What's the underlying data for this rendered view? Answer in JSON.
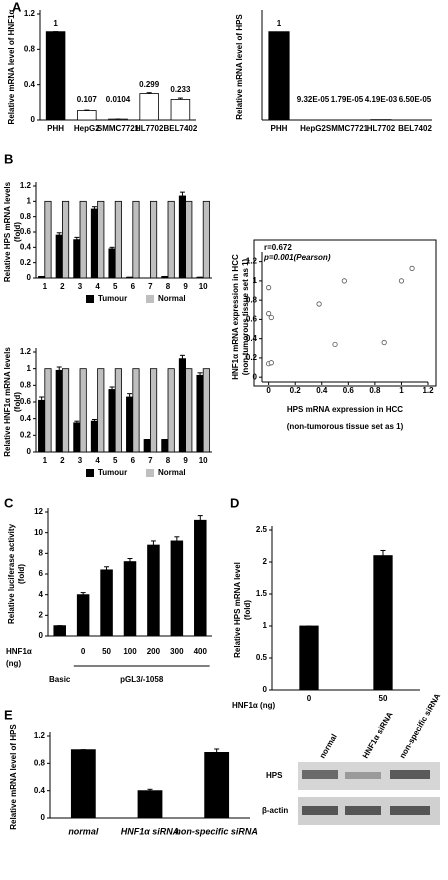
{
  "panel_labels": [
    "A",
    "B",
    "C",
    "D",
    "E"
  ],
  "chart_data": [
    {
      "type": "bar",
      "y_label": "Relative mRNA level of HNF1α",
      "categories": [
        "PHH",
        "HepG2",
        "SMMC7721",
        "HL7702",
        "BEL7402"
      ],
      "values": [
        1,
        0.107,
        0.0104,
        0.299,
        0.233
      ],
      "value_labels": [
        "1",
        "0.107",
        "0.0104",
        "0.299",
        "0.233"
      ],
      "errors": [
        0,
        0.005,
        0,
        0.01,
        0.015
      ],
      "colors": [
        "#000000",
        "#ffffff",
        "#ffffff",
        "#ffffff",
        "#ffffff"
      ],
      "ylim": [
        0,
        1.2
      ],
      "yticks": [
        0,
        0.4,
        0.8,
        1.2
      ]
    },
    {
      "type": "bar",
      "y_label": "Relative mRNA level of HPS",
      "categories": [
        "PHH",
        "HepG2",
        "SMMC7721",
        "HL7702",
        "BEL7402"
      ],
      "values": [
        1,
        9.32e-05,
        1.79e-05,
        0.00419,
        6.5e-05
      ],
      "value_labels": [
        "1",
        "9.32E-05",
        "1.79E-05",
        "4.19E-03",
        "6.50E-05"
      ],
      "colors": [
        "#000000",
        "#ffffff",
        "#ffffff",
        "#ffffff",
        "#ffffff"
      ],
      "ylim": [
        0,
        1.2
      ]
    },
    {
      "type": "bar",
      "y_label": [
        "Relative HPS mRNA levels",
        "(fold)"
      ],
      "categories": [
        "1",
        "2",
        "3",
        "4",
        "5",
        "6",
        "7",
        "8",
        "9",
        "10"
      ],
      "series": [
        {
          "name": "Tumour",
          "color": "#000000",
          "values": [
            0.02,
            0.56,
            0.5,
            0.9,
            0.38,
            0.01,
            0,
            0.02,
            1.07,
            0.01
          ],
          "errors": [
            0,
            0.03,
            0.03,
            0.03,
            0.02,
            0,
            0,
            0,
            0.05,
            0
          ]
        },
        {
          "name": "Normal",
          "color": "#bfbfbf",
          "values": [
            1,
            1,
            1,
            1,
            1,
            1,
            1,
            1,
            1,
            1
          ]
        }
      ],
      "ylim": [
        0,
        1.2
      ],
      "yticks": [
        0,
        0.2,
        0.4,
        0.6,
        0.8,
        1,
        1.2
      ]
    },
    {
      "type": "bar",
      "y_label": [
        "Relative HNF1α mRNA levels",
        "(fold)"
      ],
      "categories": [
        "1",
        "2",
        "3",
        "4",
        "5",
        "6",
        "7",
        "8",
        "9",
        "10"
      ],
      "series": [
        {
          "name": "Tumour",
          "color": "#000000",
          "values": [
            0.62,
            0.98,
            0.35,
            0.37,
            0.75,
            0.66,
            0.15,
            0.15,
            1.12,
            0.92
          ],
          "errors": [
            0.04,
            0.04,
            0.02,
            0.02,
            0.03,
            0.04,
            0,
            0,
            0.04,
            0.03
          ]
        },
        {
          "name": "Normal",
          "color": "#bfbfbf",
          "values": [
            1,
            1,
            1,
            1,
            1,
            1,
            1,
            1,
            1,
            1
          ]
        }
      ],
      "ylim": [
        0,
        1.2
      ],
      "yticks": [
        0,
        0.2,
        0.4,
        0.6,
        0.8,
        1,
        1.2
      ]
    },
    {
      "type": "scatter",
      "annotations": [
        "r=0.672",
        "p=0.001(Pearson)"
      ],
      "x_label": [
        "HPS mRNA expression in HCC",
        "(non-tumorous tissue set as 1)"
      ],
      "y_label": [
        "HNF1α mRNA expression in HCC",
        "(non-tumorous tissue set as 1)"
      ],
      "x": [
        0,
        0,
        0.02,
        0,
        0.02,
        0.38,
        0.5,
        0.57,
        0.87,
        1.0,
        1.08
      ],
      "y": [
        0.93,
        0.66,
        0.62,
        0.14,
        0.15,
        0.76,
        0.34,
        1.0,
        0.36,
        1.0,
        1.13
      ],
      "xlim": [
        -0.05,
        1.2
      ],
      "ylim": [
        -0.05,
        1.3
      ],
      "xticks": [
        0,
        0.2,
        0.4,
        0.6,
        0.8,
        1,
        1.2
      ],
      "yticks": [
        0,
        0.2,
        0.4,
        0.6,
        0.8,
        1,
        1.2
      ]
    },
    {
      "type": "bar",
      "y_label": [
        "Relative luciferase activity",
        "(fold)"
      ],
      "x_row_label": [
        "HNF1α",
        "(ng)"
      ],
      "group_labels": [
        "Basic",
        "pGL3/-1058"
      ],
      "categories": [
        null,
        "0",
        "50",
        "100",
        "200",
        "300",
        "400"
      ],
      "values": [
        1,
        4,
        6.4,
        7.2,
        8.8,
        9.2,
        11.2
      ],
      "errors": [
        0,
        0.2,
        0.3,
        0.3,
        0.4,
        0.4,
        0.45
      ],
      "color": "#000000",
      "ylim": [
        0,
        12
      ],
      "yticks": [
        0,
        2,
        4,
        6,
        8,
        10,
        12
      ]
    },
    {
      "type": "bar",
      "y_label": [
        "Relative HPS mRNA level",
        "(fold)"
      ],
      "x_row_label": "HNF1α (ng)",
      "categories": [
        "0",
        "50"
      ],
      "values": [
        1,
        2.1
      ],
      "errors": [
        0,
        0.08
      ],
      "color": "#000000",
      "ylim": [
        0,
        2.5
      ],
      "yticks": [
        0,
        0.5,
        1,
        1.5,
        2,
        2.5
      ]
    },
    {
      "type": "bar",
      "y_label": "Relative mRNA level of HPS",
      "categories": [
        "normal",
        "HNF1α siRNA",
        "non-specific siRNA"
      ],
      "values": [
        1,
        0.4,
        0.96
      ],
      "errors": [
        0,
        0.02,
        0.05
      ],
      "color": "#000000",
      "ylim": [
        0,
        1.2
      ],
      "yticks": [
        0,
        0.4,
        0.8,
        1.2
      ]
    }
  ],
  "blot": {
    "lanes": [
      "normal",
      "HNF1α siRNA",
      "non-specific siRNA"
    ],
    "rows": [
      "HPS",
      "β-actin"
    ]
  }
}
